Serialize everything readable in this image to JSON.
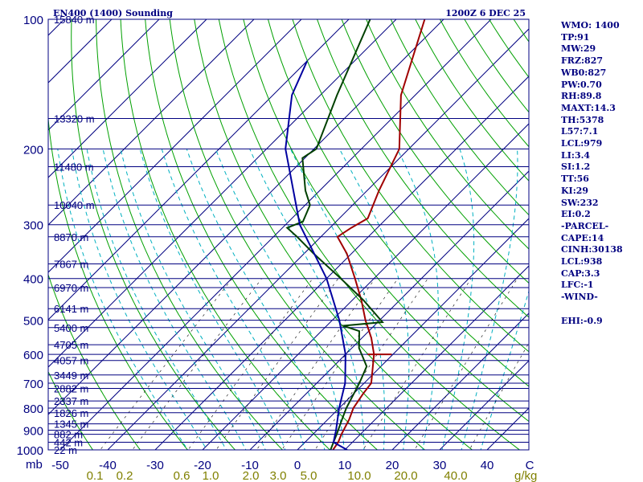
{
  "header": {
    "title": "EN400 (1400) Sounding",
    "valid_time": "1200Z  6 DEC 25"
  },
  "colors": {
    "isobar": "#000080",
    "skewed_isotherm": "#000080",
    "dry_adiabat": "#00a000",
    "moist_adiabat": "#00b0c0",
    "mixing_ratio": "#000000",
    "temperature": "#a00000",
    "dewpoint": "#004000",
    "parcel": "#0000a0",
    "axis_text": "#000080",
    "mixing_ratio_text": "#808000"
  },
  "indices": [
    "WMO: 1400",
    "TP:91",
    "MW:29",
    "FRZ:827",
    "WB0:827",
    "PW:0.70",
    "RH:89.8",
    "MAXT:14.3",
    "TH:5378",
    "L57:7.1",
    "LCL:979",
    "LI:3.4",
    "SI:1.2",
    "TT:56",
    "KI:29",
    "SW:232",
    "EI:0.2",
    "-PARCEL-",
    "CAPE:14",
    "CINH:30138",
    "LCL:938",
    "CAP:3.3",
    "LFC:-1",
    "-WIND-",
    "",
    "EHI:-0.9"
  ],
  "chart_data": {
    "type": "line",
    "diagram": "Skew-T log-P",
    "pressure_unit": "mb",
    "temperature_unit": "C",
    "mixing_ratio_unit": "g/kg",
    "pressure_levels": [
      100,
      200,
      300,
      400,
      500,
      600,
      700,
      800,
      900,
      1000
    ],
    "temperature_ticks": [
      -50,
      -40,
      -30,
      -20,
      -10,
      0,
      10,
      20,
      30,
      40
    ],
    "temperature_tick_labels": [
      "-50",
      "-40",
      "-30",
      "-20",
      "-10",
      "0",
      "10",
      "20",
      "30",
      "40"
    ],
    "corner_label": "C",
    "mixing_ratio_labels": [
      "0.1",
      "0.2",
      "0.6",
      "1.0",
      "2.0",
      "3.0",
      "5.0",
      "10.0",
      "20.0",
      "40.0"
    ],
    "mixing_ratio_unit_label": "g/kg",
    "pressure_axis_label": "mb",
    "heights": [
      {
        "p": 1000,
        "label": "22 m"
      },
      {
        "p": 960,
        "label": "442 m"
      },
      {
        "p": 920,
        "label": "882 m"
      },
      {
        "p": 870,
        "label": "1345 m"
      },
      {
        "p": 820,
        "label": "1826 m"
      },
      {
        "p": 770,
        "label": "2337 m"
      },
      {
        "p": 720,
        "label": "2882 m"
      },
      {
        "p": 670,
        "label": "3449 m"
      },
      {
        "p": 620,
        "label": "4057 m"
      },
      {
        "p": 570,
        "label": "4705 m"
      },
      {
        "p": 520,
        "label": "5400 m"
      },
      {
        "p": 470,
        "label": "6141 m"
      },
      {
        "p": 420,
        "label": "6970 m"
      },
      {
        "p": 370,
        "label": "7867 m"
      },
      {
        "p": 320,
        "label": "8870 m"
      },
      {
        "p": 270,
        "label": "10040 m"
      },
      {
        "p": 220,
        "label": "11480 m"
      },
      {
        "p": 170,
        "label": "13320 m"
      },
      {
        "p": 100,
        "label": "15840 m"
      }
    ],
    "series": [
      {
        "name": "Temperature",
        "points": [
          {
            "p": 1000,
            "t": 7.5
          },
          {
            "p": 960,
            "t": 7.0
          },
          {
            "p": 920,
            "t": 6.0
          },
          {
            "p": 850,
            "t": 4.5
          },
          {
            "p": 800,
            "t": 3.0
          },
          {
            "p": 740,
            "t": 2.0
          },
          {
            "p": 700,
            "t": 1.5
          },
          {
            "p": 600,
            "t": -4.0
          },
          {
            "p": 550,
            "t": -8.0
          },
          {
            "p": 500,
            "t": -13.0
          },
          {
            "p": 450,
            "t": -18.0
          },
          {
            "p": 400,
            "t": -24.0
          },
          {
            "p": 350,
            "t": -31.0
          },
          {
            "p": 320,
            "t": -36.5
          },
          {
            "p": 305,
            "t": -35.5
          },
          {
            "p": 290,
            "t": -34.0
          },
          {
            "p": 250,
            "t": -37.5
          },
          {
            "p": 200,
            "t": -42.0
          },
          {
            "p": 150,
            "t": -53.0
          },
          {
            "p": 100,
            "t": -64.0
          }
        ]
      },
      {
        "name": "Dewpoint",
        "points": [
          {
            "p": 1000,
            "t": 7.0
          },
          {
            "p": 960,
            "t": 6.0
          },
          {
            "p": 920,
            "t": 5.0
          },
          {
            "p": 850,
            "t": 3.0
          },
          {
            "p": 800,
            "t": 1.5
          },
          {
            "p": 700,
            "t": -1.0
          },
          {
            "p": 640,
            "t": -3.0
          },
          {
            "p": 580,
            "t": -8.5
          },
          {
            "p": 530,
            "t": -12.0
          },
          {
            "p": 515,
            "t": -16.5
          },
          {
            "p": 505,
            "t": -9.0
          },
          {
            "p": 450,
            "t": -17.5
          },
          {
            "p": 400,
            "t": -27.0
          },
          {
            "p": 350,
            "t": -38.0
          },
          {
            "p": 320,
            "t": -45.0
          },
          {
            "p": 305,
            "t": -49.0
          },
          {
            "p": 295,
            "t": -47.0
          },
          {
            "p": 270,
            "t": -49.0
          },
          {
            "p": 250,
            "t": -53.0
          },
          {
            "p": 210,
            "t": -60.5
          },
          {
            "p": 200,
            "t": -59.5
          },
          {
            "p": 150,
            "t": -66.5
          },
          {
            "p": 100,
            "t": -75.5
          }
        ]
      },
      {
        "name": "Parcel",
        "points": [
          {
            "p": 1000,
            "t": 10.5
          },
          {
            "p": 960,
            "t": 6.0
          },
          {
            "p": 900,
            "t": 4.0
          },
          {
            "p": 800,
            "t": 0.0
          },
          {
            "p": 700,
            "t": -4.0
          },
          {
            "p": 600,
            "t": -10.0
          },
          {
            "p": 500,
            "t": -18.5
          },
          {
            "p": 400,
            "t": -30.0
          },
          {
            "p": 300,
            "t": -47.0
          },
          {
            "p": 200,
            "t": -66.0
          },
          {
            "p": 150,
            "t": -76.0
          },
          {
            "p": 125,
            "t": -80.0
          }
        ]
      }
    ]
  }
}
